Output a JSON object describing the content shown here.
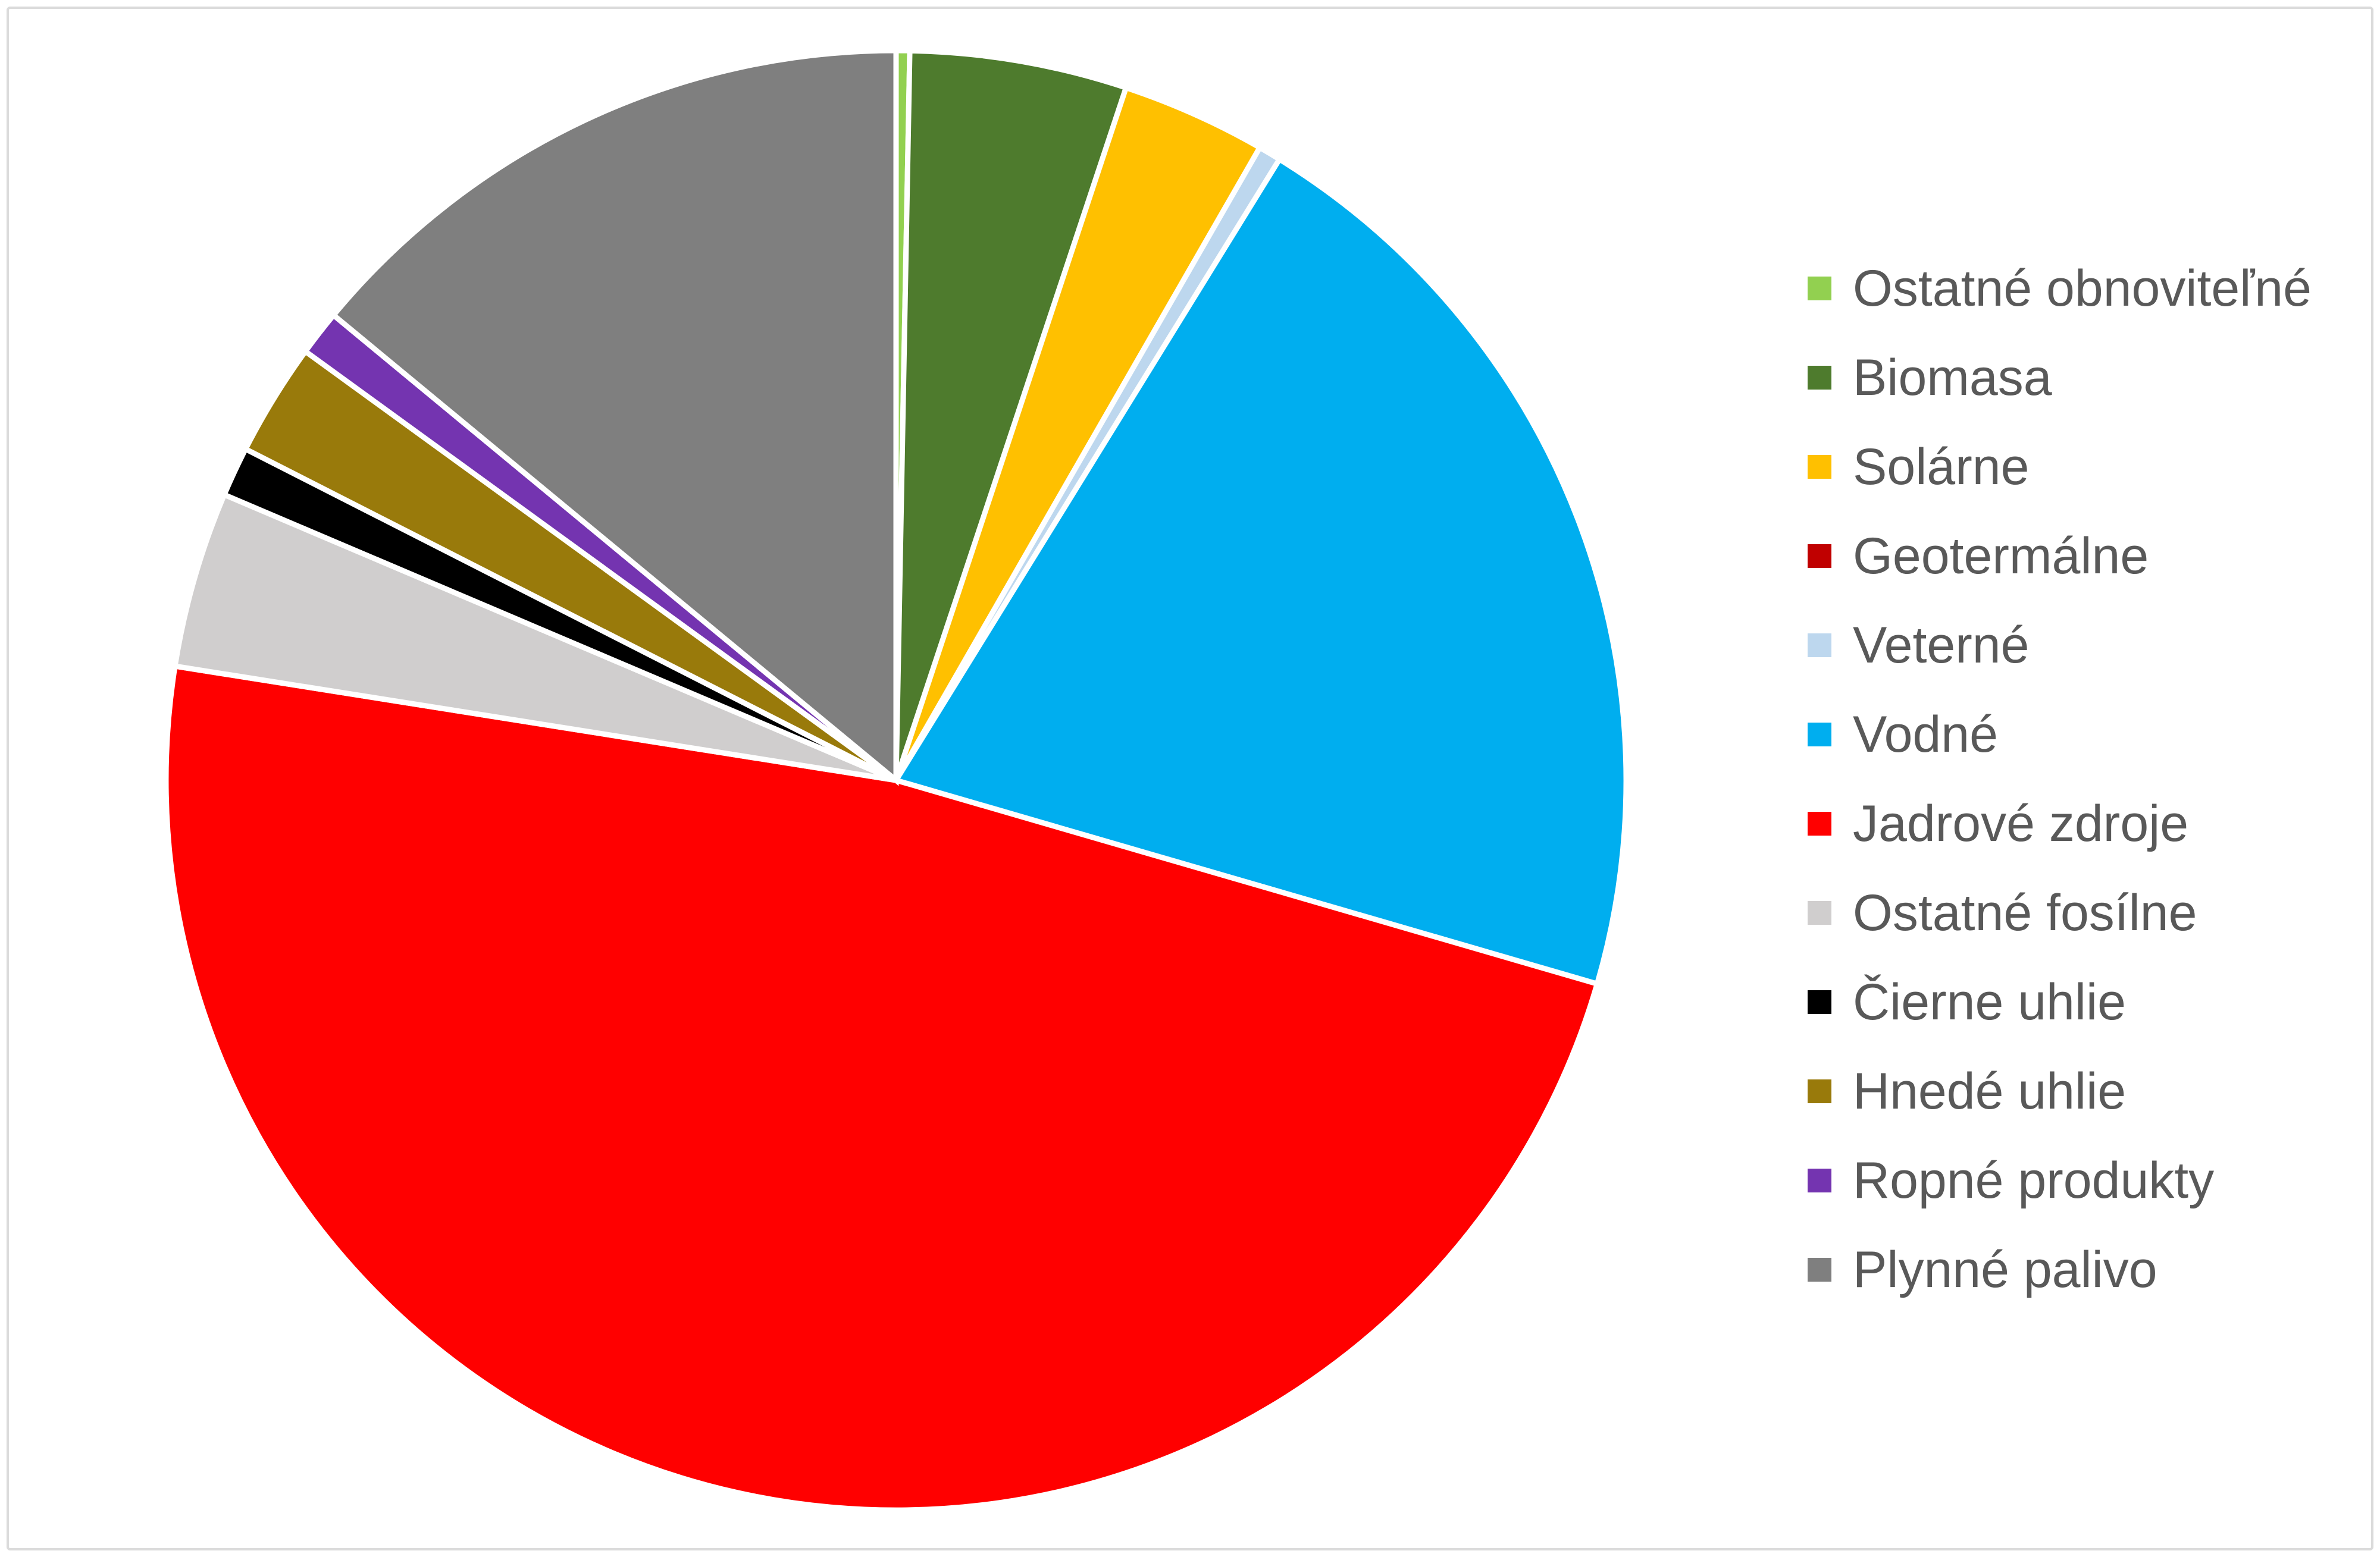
{
  "chart": {
    "background": "#FFFFFF",
    "frame_border_color": "#DBDBDB",
    "gap_color": "#FFFFFF",
    "legend_text_color": "#595959",
    "legend_position": "right"
  },
  "chart_data": {
    "type": "pie",
    "title": "",
    "start_angle": 0,
    "direction": "clockwise",
    "legend_position": "right",
    "categories": [
      "Ostatné obnoviteľné",
      "Biomasa",
      "Solárne",
      "Geotermálne",
      "Veterné",
      "Vodné",
      "Jadrové zdroje",
      "Ostatné fosílne",
      "Čierne uhlie",
      "Hnedé uhlie",
      "Ropné produkty",
      "Plynné palivo"
    ],
    "values": [
      0.3,
      4.8,
      3.2,
      0.0,
      0.5,
      20.7,
      48.0,
      3.9,
      1.1,
      2.5,
      1.0,
      14.0
    ],
    "colors": [
      "#92D050",
      "#4E7B2D",
      "#FFC000",
      "#C00000",
      "#BDD7EE",
      "#00AEEF",
      "#FF0000",
      "#D0CECE",
      "#000000",
      "#997A0B",
      "#7434B0",
      "#7F7F7F"
    ]
  }
}
